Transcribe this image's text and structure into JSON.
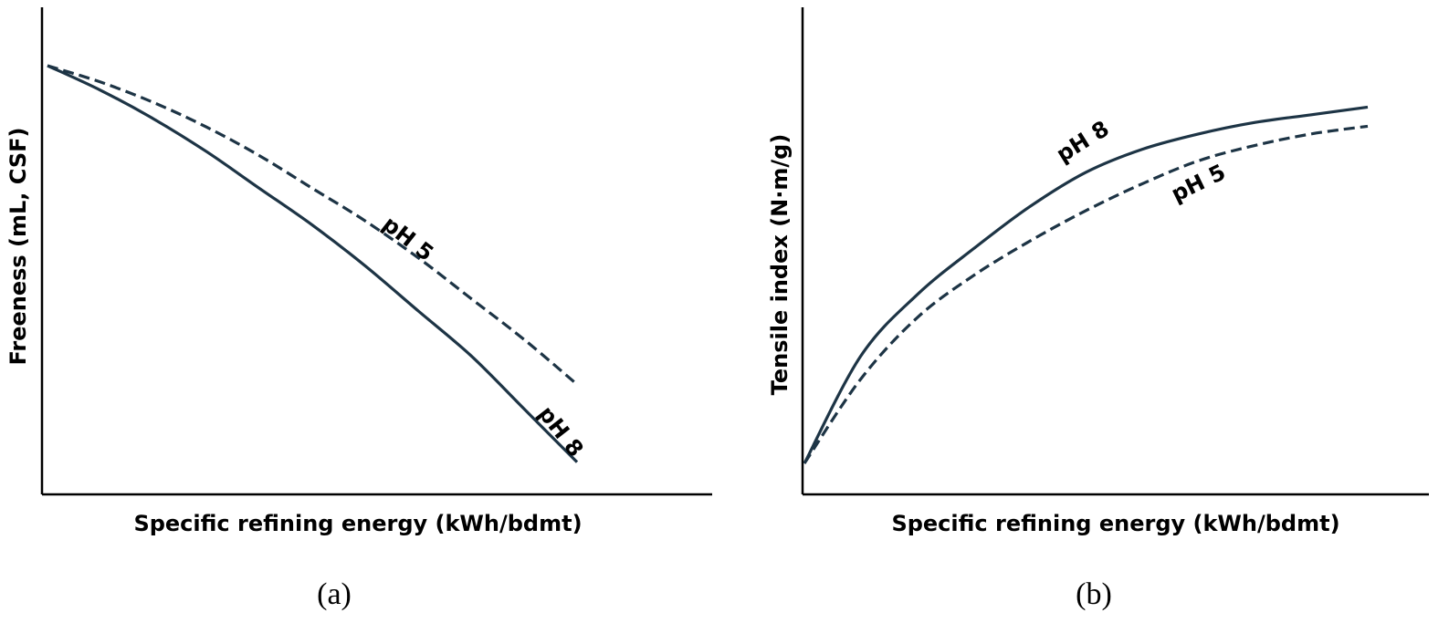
{
  "chart_data": [
    {
      "type": "line",
      "panel_label": "(a)",
      "xlabel": "Specific refining energy (kWh/bdmt)",
      "ylabel": "Freeness (mL, CSF)",
      "xlim": [
        0,
        100
      ],
      "ylim": [
        0,
        100
      ],
      "ticks_shown": false,
      "grid": false,
      "legend": "none",
      "series": [
        {
          "name": "pH 5",
          "style": "dashed",
          "color": "#1d3445",
          "x": [
            0,
            10,
            20,
            30,
            40,
            50,
            60,
            70,
            80,
            90,
            100
          ],
          "y": [
            100,
            96,
            91,
            85,
            78,
            70,
            62,
            53,
            43,
            33,
            22
          ]
        },
        {
          "name": "pH 8",
          "style": "solid",
          "color": "#1d3445",
          "x": [
            0,
            10,
            20,
            30,
            40,
            50,
            60,
            70,
            80,
            90,
            100
          ],
          "y": [
            100,
            94,
            87,
            79,
            70,
            61,
            51,
            40,
            29,
            16,
            3
          ]
        }
      ]
    },
    {
      "type": "line",
      "panel_label": "(b)",
      "xlabel": "Specific refining energy (kWh/bdmt)",
      "ylabel": "Tensile index (N·m/g)",
      "xlim": [
        0,
        100
      ],
      "ylim": [
        0,
        100
      ],
      "ticks_shown": false,
      "grid": false,
      "legend": "none",
      "series": [
        {
          "name": "pH 8",
          "style": "solid",
          "color": "#1d3445",
          "x": [
            0,
            10,
            20,
            30,
            40,
            50,
            60,
            70,
            80,
            90,
            100
          ],
          "y": [
            0,
            28,
            44,
            56,
            67,
            76,
            82,
            86,
            89,
            91,
            93
          ]
        },
        {
          "name": "pH 5",
          "style": "dashed",
          "color": "#1d3445",
          "x": [
            0,
            10,
            20,
            30,
            40,
            50,
            60,
            70,
            80,
            90,
            100
          ],
          "y": [
            0,
            22,
            38,
            49,
            58,
            66,
            73,
            79,
            83,
            86,
            88
          ]
        }
      ]
    }
  ]
}
